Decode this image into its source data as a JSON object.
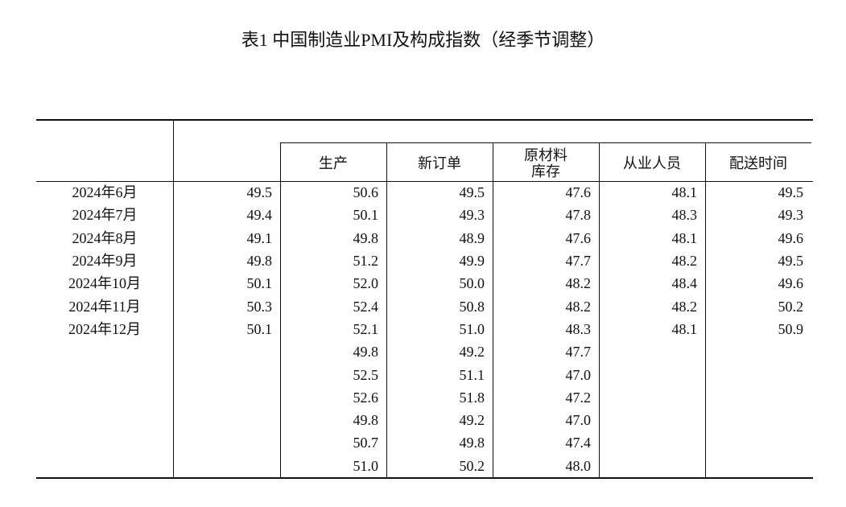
{
  "title": "表1 中国制造业PMI及构成指数（经季节调整）",
  "table": {
    "header": [
      null,
      null,
      "生产",
      "新订单",
      "原材料库存",
      "从业人员",
      "配送时间"
    ],
    "rows": [
      [
        "2024年6月",
        "49.5",
        "50.6",
        "49.5",
        "47.6",
        "48.1",
        "49.5"
      ],
      [
        "2024年7月",
        "49.4",
        "50.1",
        "49.3",
        "47.8",
        "48.3",
        "49.3"
      ],
      [
        "2024年8月",
        "49.1",
        "49.8",
        "48.9",
        "47.6",
        "48.1",
        "49.6"
      ],
      [
        "2024年9月",
        "49.8",
        "51.2",
        "49.9",
        "47.7",
        "48.2",
        "49.5"
      ],
      [
        "2024年10月",
        "50.1",
        "52.0",
        "50.0",
        "48.2",
        "48.4",
        "49.6"
      ],
      [
        "2024年11月",
        "50.3",
        "52.4",
        "50.8",
        "48.2",
        "48.2",
        "50.2"
      ],
      [
        "2024年12月",
        "50.1",
        "52.1",
        "51.0",
        "48.3",
        "48.1",
        "50.9"
      ],
      [
        null,
        null,
        "49.8",
        "49.2",
        "47.7",
        null,
        null
      ],
      [
        null,
        null,
        "52.5",
        "51.1",
        "47.0",
        null,
        null
      ],
      [
        null,
        null,
        "52.6",
        "51.8",
        "47.2",
        null,
        null
      ],
      [
        null,
        null,
        "49.8",
        "49.2",
        "47.0",
        null,
        null
      ],
      [
        null,
        null,
        "50.7",
        "49.8",
        "47.4",
        null,
        null
      ],
      [
        null,
        null,
        "51.0",
        "50.2",
        "48.0",
        null,
        null
      ]
    ]
  }
}
